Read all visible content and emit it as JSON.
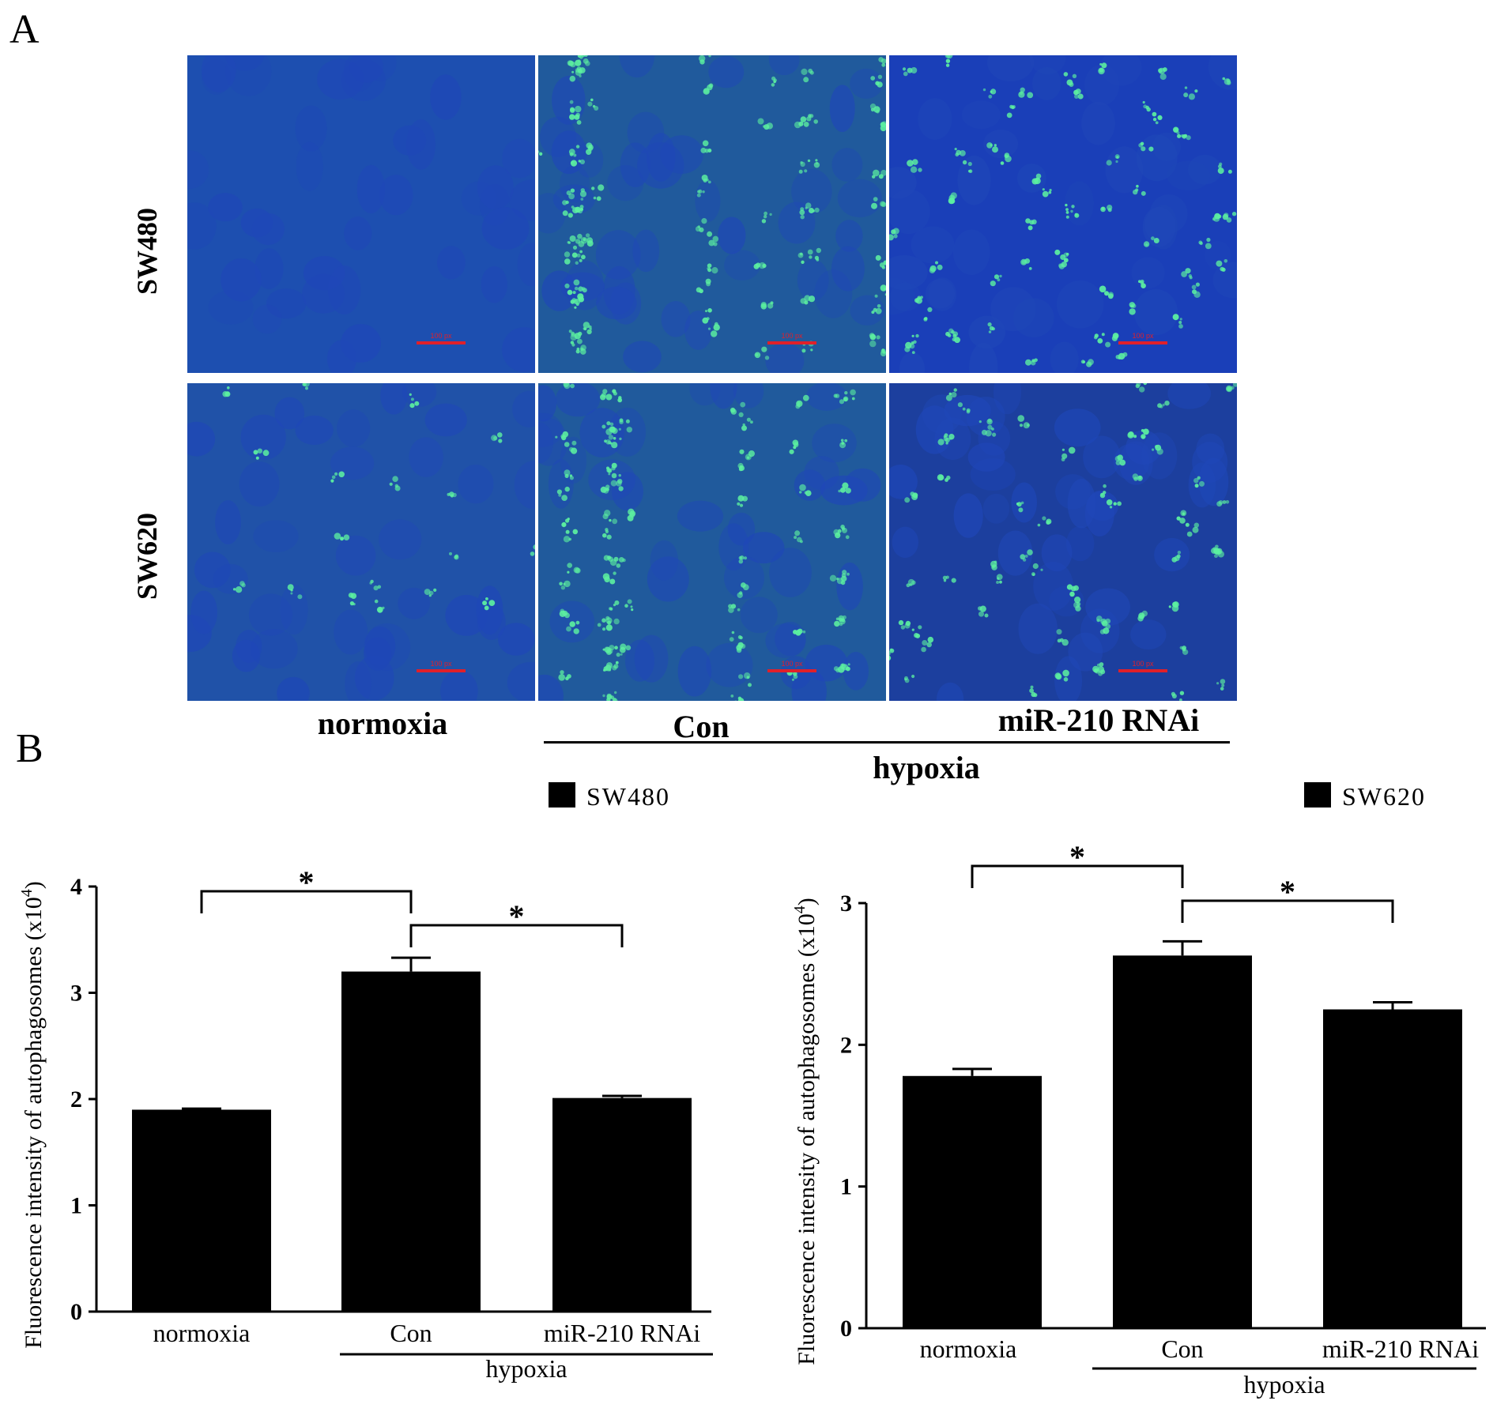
{
  "figure": {
    "panel_a_label": "A",
    "panel_b_label": "B",
    "row_labels": [
      "SW480",
      "SW620"
    ],
    "column_labels": [
      "normoxia",
      "Con",
      "miR-210 RNAi"
    ],
    "group_label": "hypoxia",
    "scale_bar_text": "100 px",
    "colors": {
      "nucleus_blue": "#1f47b8",
      "autophagosome_green": "#5cf0a0",
      "scale_red": "#e0202a",
      "bar": "#000000"
    }
  },
  "chart_data": [
    {
      "type": "bar",
      "legend": "SW480",
      "legend_position": "top-right",
      "categories": [
        "normoxia",
        "Con",
        "miR-210 RNAi"
      ],
      "group_label": "hypoxia",
      "group_members": [
        "Con",
        "miR-210 RNAi"
      ],
      "values": [
        1.9,
        3.2,
        2.01
      ],
      "errors": [
        0.01,
        0.13,
        0.02
      ],
      "ylabel_main": "Fluorescence intensity of autophagosomes (x10",
      "ylabel_sup": "4",
      "ylabel_end": ")",
      "ylim": [
        0,
        4
      ],
      "yticks": [
        "0",
        "1",
        "2",
        "3",
        "4"
      ],
      "grid": false,
      "significance": [
        {
          "from": "normoxia",
          "to": "Con",
          "label": "*"
        },
        {
          "from": "Con",
          "to": "miR-210 RNAi",
          "label": "*"
        }
      ]
    },
    {
      "type": "bar",
      "legend": "SW620",
      "legend_position": "top-right",
      "categories": [
        "normoxia",
        "Con",
        "miR-210 RNAi"
      ],
      "group_label": "hypoxia",
      "group_members": [
        "Con",
        "miR-210 RNAi"
      ],
      "values": [
        1.78,
        2.63,
        2.25
      ],
      "errors": [
        0.05,
        0.1,
        0.05
      ],
      "ylabel_main": "Fluorescence intensity of autophagosomes (x10",
      "ylabel_sup": "4",
      "ylabel_end": ")",
      "ylim": [
        0,
        3
      ],
      "yticks": [
        "0",
        "1",
        "2",
        "3"
      ],
      "grid": false,
      "significance": [
        {
          "from": "normoxia",
          "to": "Con",
          "label": "*"
        },
        {
          "from": "Con",
          "to": "miR-210 RNAi",
          "label": "*"
        }
      ]
    }
  ]
}
